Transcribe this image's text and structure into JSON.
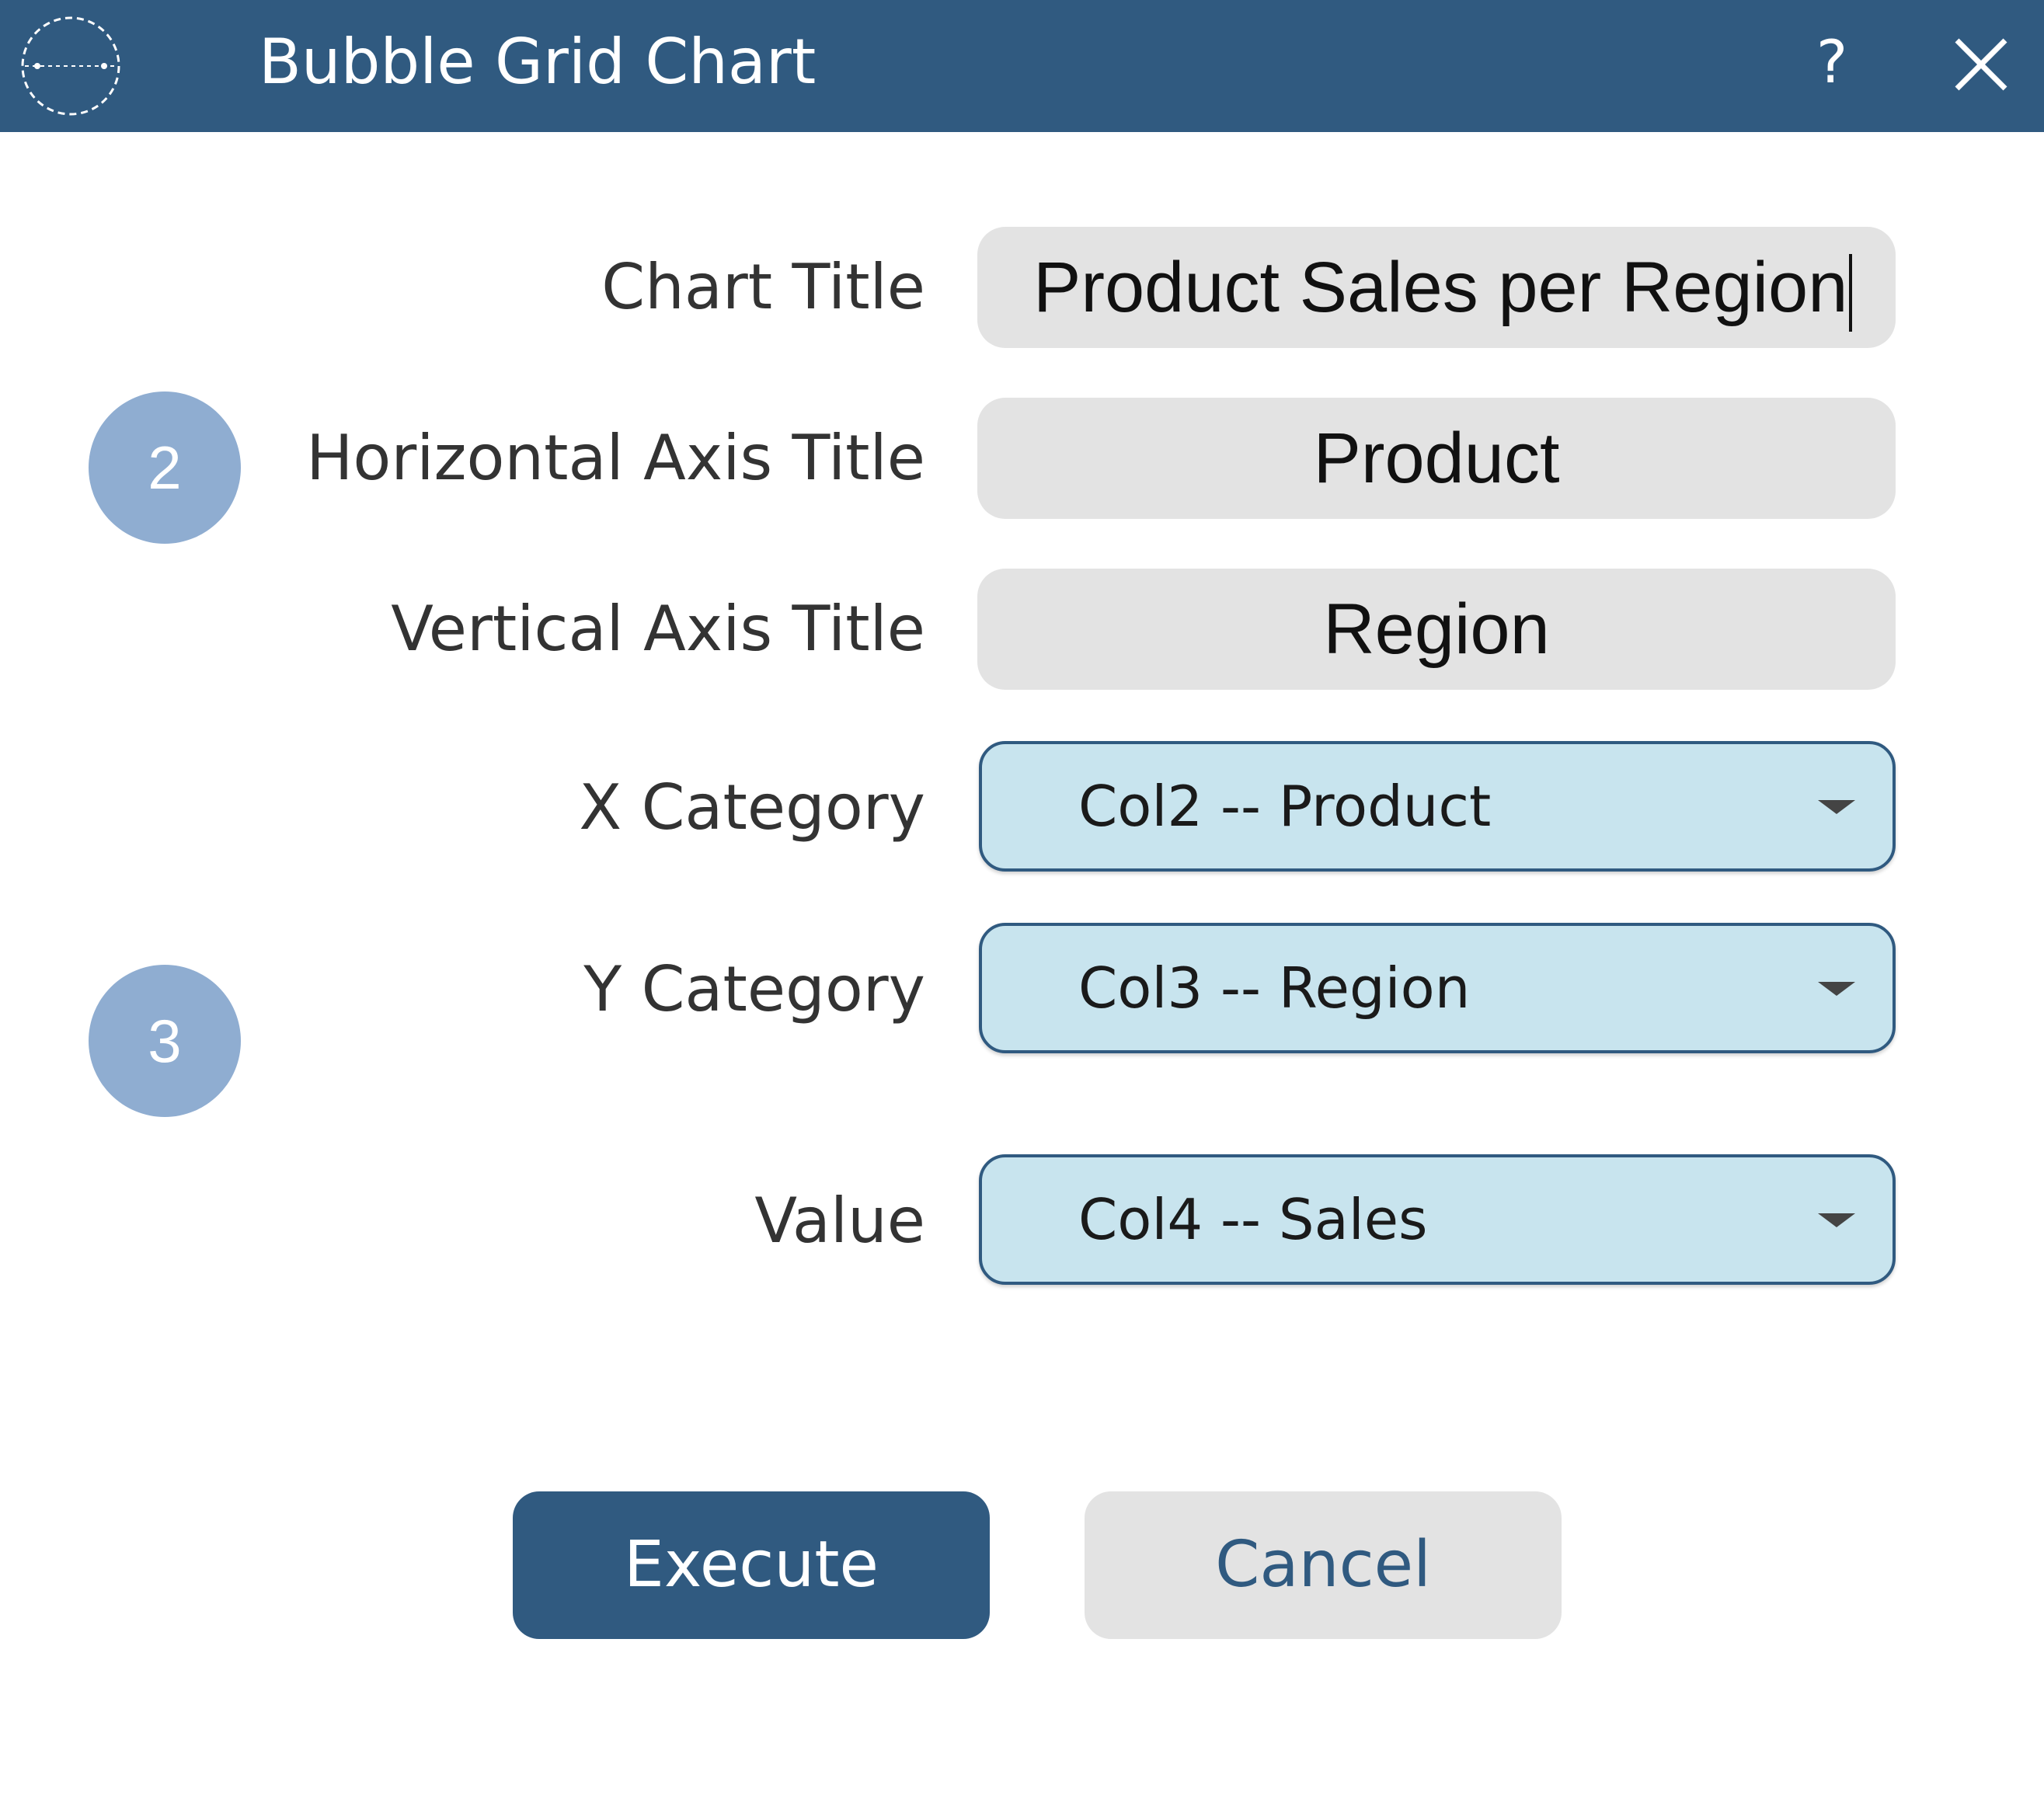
{
  "window": {
    "title": "Bubble Grid Chart",
    "help_label": "?",
    "close_icon": "close-icon",
    "logo_icon": "app-logo-icon"
  },
  "badges": {
    "step_2": "2",
    "step_3": "3"
  },
  "fields": {
    "chart_title": {
      "label": "Chart Title",
      "value": "Product Sales per Region"
    },
    "horizontal_axis_title": {
      "label": "Horizontal Axis Title",
      "value": "Product"
    },
    "vertical_axis_title": {
      "label": "Vertical Axis Title",
      "value": "Region"
    },
    "x_category": {
      "label": "X Category",
      "selected": "Col2 -- Product"
    },
    "y_category": {
      "label": "Y Category",
      "selected": "Col3 -- Region"
    },
    "value": {
      "label": "Value",
      "selected": "Col4 -- Sales"
    }
  },
  "buttons": {
    "execute": "Execute",
    "cancel": "Cancel"
  },
  "colors": {
    "titlebar": "#305a80",
    "badge": "#8fadd1",
    "select_bg": "#c8e4ee",
    "input_bg": "#e3e3e3"
  }
}
